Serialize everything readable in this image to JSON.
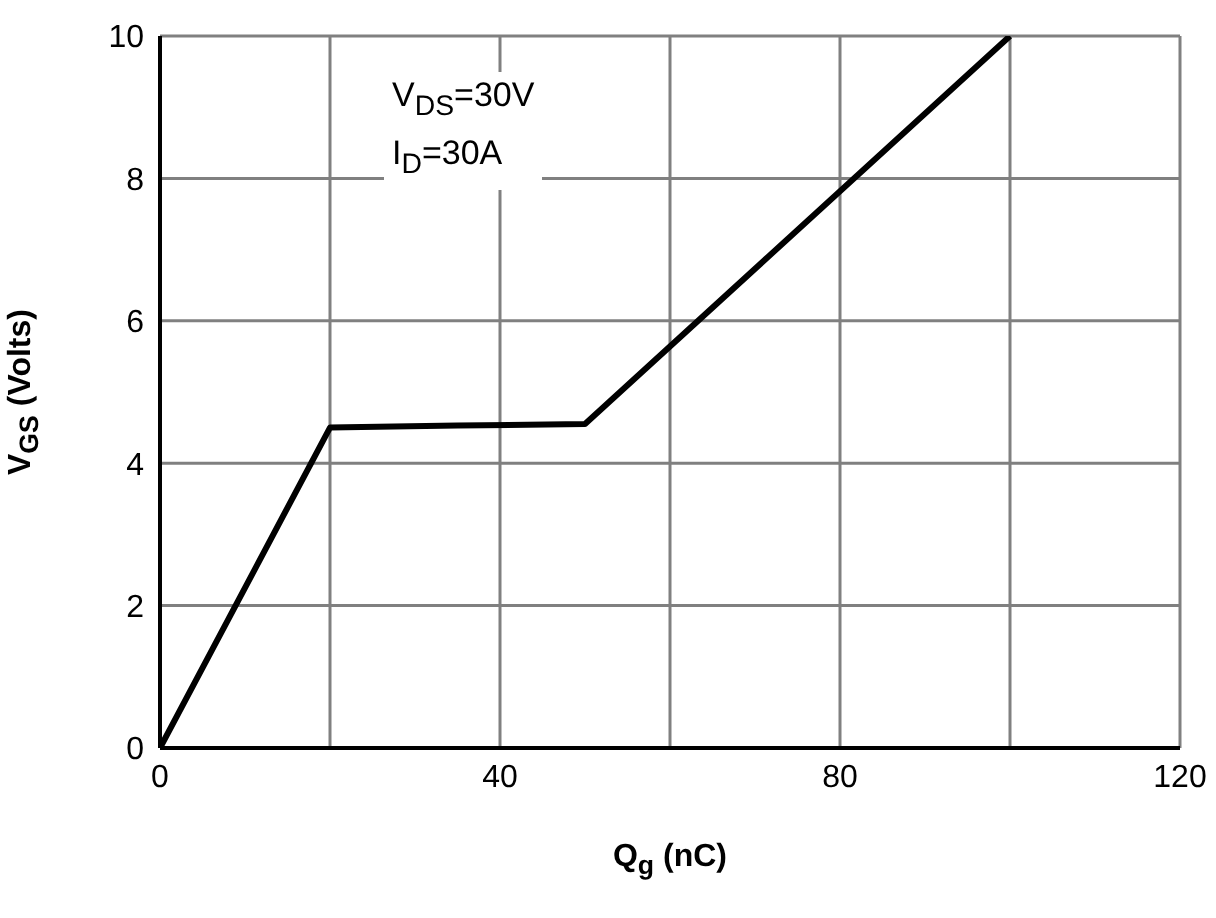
{
  "chart_data": {
    "type": "line",
    "xlabel": "Q$_{g}$ (nC)",
    "ylabel": "V$_{GS}$ (Volts)",
    "annotations": [
      "V$_{DS}$=30V",
      "I$_{D}$=30A"
    ],
    "x": [
      0,
      20,
      35,
      50,
      100
    ],
    "series": [
      {
        "color": "#000000",
        "values": [
          0,
          4.5,
          4.53,
          4.55,
          10
        ]
      }
    ],
    "xlim": [
      0,
      120
    ],
    "xticks": [
      0,
      {
        "value": 20,
        "label": null
      },
      40,
      {
        "value": 60,
        "label": null
      },
      80,
      {
        "value": 100,
        "label": null
      },
      120
    ],
    "ylim": [
      0,
      10
    ],
    "yticks": [
      0,
      2,
      4,
      6,
      8,
      10
    ],
    "grid": true,
    "marker": "none",
    "line_style": "solid"
  }
}
